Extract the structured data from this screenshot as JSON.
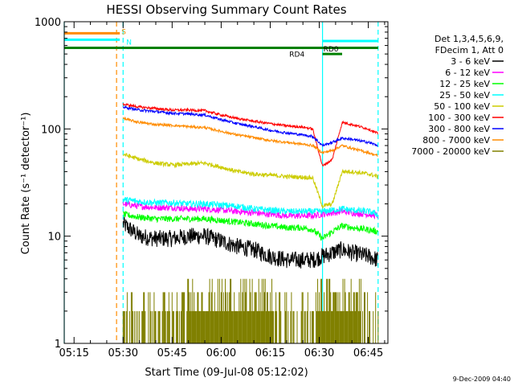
{
  "chart_data": {
    "type": "line",
    "title": "HESSI Observing Summary Count Rates",
    "xlabel": "Start Time (09-Jul-08 05:12:02)",
    "ylabel": "Count Rate (s⁻¹ detector⁻¹)",
    "y_scale": "log",
    "ylim": [
      1,
      1000
    ],
    "xlim": [
      "05:12",
      "06:51"
    ],
    "x_ticks": [
      "05:15",
      "05:30",
      "05:45",
      "06:00",
      "06:15",
      "06:30",
      "06:45"
    ],
    "y_ticks": [
      "1",
      "10",
      "100",
      "1000"
    ],
    "legend_header": [
      "Det 1,3,4,5,6,9,",
      "FDecim 1, Att 0"
    ],
    "series": [
      {
        "name": "3 - 6 keV",
        "color": "#000000",
        "x": [
          "05:30",
          "05:35",
          "05:40",
          "05:45",
          "05:50",
          "05:55",
          "06:00",
          "06:05",
          "06:10",
          "06:15",
          "06:20",
          "06:25",
          "06:28",
          "06:31",
          "06:34",
          "06:37",
          "06:40",
          "06:45",
          "06:48"
        ],
        "values": [
          13,
          10,
          9.5,
          9.5,
          10,
          10,
          9,
          8,
          7.5,
          6.5,
          6,
          6,
          6,
          6.5,
          7,
          7.5,
          7,
          6.5,
          6
        ]
      },
      {
        "name": "6 - 12 keV",
        "color": "#ff00ff",
        "x": [
          "05:30",
          "05:35",
          "05:40",
          "05:45",
          "05:50",
          "05:55",
          "06:00",
          "06:05",
          "06:10",
          "06:15",
          "06:20",
          "06:25",
          "06:28",
          "06:31",
          "06:34",
          "06:37",
          "06:40",
          "06:45",
          "06:48"
        ],
        "values": [
          20,
          19,
          18.5,
          18.5,
          18,
          18,
          17.5,
          17,
          16.5,
          16,
          15.5,
          15.5,
          15.5,
          16,
          16.5,
          17,
          16.5,
          16,
          15.5
        ]
      },
      {
        "name": "12 - 25 keV",
        "color": "#00ff00",
        "x": [
          "05:30",
          "05:35",
          "05:40",
          "05:45",
          "05:50",
          "05:55",
          "06:00",
          "06:05",
          "06:10",
          "06:15",
          "06:20",
          "06:25",
          "06:28",
          "06:31",
          "06:34",
          "06:37",
          "06:40",
          "06:45",
          "06:48"
        ],
        "values": [
          16,
          15,
          14.5,
          14.5,
          14.5,
          14.5,
          14,
          13.5,
          13,
          12.5,
          12,
          12,
          11.5,
          9.5,
          11,
          12.5,
          12,
          11.5,
          11
        ]
      },
      {
        "name": "25 - 50 keV",
        "color": "#00ffff",
        "x": [
          "05:30",
          "05:35",
          "05:40",
          "05:45",
          "05:50",
          "05:55",
          "06:00",
          "06:05",
          "06:10",
          "06:15",
          "06:20",
          "06:25",
          "06:28",
          "06:31",
          "06:34",
          "06:37",
          "06:40",
          "06:45",
          "06:48"
        ],
        "values": [
          22,
          21,
          20.5,
          20.5,
          20,
          20,
          19.5,
          19,
          18,
          17.5,
          17,
          17,
          17,
          17,
          17.5,
          18,
          17.5,
          17,
          16
        ]
      },
      {
        "name": "50 - 100 keV",
        "color": "#cccc00",
        "x": [
          "05:30",
          "05:35",
          "05:40",
          "05:45",
          "05:50",
          "05:55",
          "06:00",
          "06:05",
          "06:10",
          "06:15",
          "06:20",
          "06:25",
          "06:28",
          "06:31",
          "06:34",
          "06:37",
          "06:40",
          "06:45",
          "06:48"
        ],
        "values": [
          58,
          52,
          48,
          46,
          47,
          48,
          44,
          40,
          38,
          37,
          36,
          35.5,
          35,
          19,
          20,
          40,
          40,
          38,
          36
        ]
      },
      {
        "name": "100 - 300 keV",
        "color": "#ff0000",
        "x": [
          "05:30",
          "05:35",
          "05:40",
          "05:45",
          "05:50",
          "05:55",
          "06:00",
          "06:05",
          "06:10",
          "06:15",
          "06:20",
          "06:25",
          "06:28",
          "06:31",
          "06:34",
          "06:37",
          "06:40",
          "06:45",
          "06:48"
        ],
        "values": [
          170,
          160,
          155,
          150,
          150,
          148,
          135,
          125,
          118,
          112,
          107,
          104,
          100,
          45,
          52,
          115,
          110,
          100,
          90
        ]
      },
      {
        "name": "300 - 800 keV",
        "color": "#0000ff",
        "x": [
          "05:30",
          "05:35",
          "05:40",
          "05:45",
          "05:50",
          "05:55",
          "06:00",
          "06:05",
          "06:10",
          "06:15",
          "06:20",
          "06:25",
          "06:28",
          "06:31",
          "06:34",
          "06:37",
          "06:40",
          "06:45",
          "06:48"
        ],
        "values": [
          160,
          150,
          145,
          140,
          138,
          135,
          122,
          112,
          105,
          97,
          92,
          88,
          85,
          70,
          75,
          82,
          80,
          75,
          70
        ]
      },
      {
        "name": "800 - 7000 keV",
        "color": "#ff8c00",
        "x": [
          "05:30",
          "05:35",
          "05:40",
          "05:45",
          "05:50",
          "05:55",
          "06:00",
          "06:05",
          "06:10",
          "06:15",
          "06:20",
          "06:25",
          "06:28",
          "06:31",
          "06:34",
          "06:37",
          "06:40",
          "06:45",
          "06:48"
        ],
        "values": [
          125,
          115,
          110,
          108,
          105,
          103,
          95,
          88,
          83,
          78,
          75,
          72,
          70,
          60,
          63,
          70,
          66,
          60,
          56
        ]
      },
      {
        "name": "7000 - 20000 keV",
        "color": "#808000",
        "x": [
          "05:30",
          "05:35",
          "05:40",
          "05:45",
          "05:50",
          "05:55",
          "06:00",
          "06:05",
          "06:10",
          "06:15",
          "06:20",
          "06:25",
          "06:28",
          "06:31",
          "06:34",
          "06:37",
          "06:40",
          "06:45",
          "06:48"
        ],
        "values": [
          1.5,
          1.5,
          1.5,
          1.5,
          2.5,
          3,
          3,
          2.5,
          2.5,
          2.5,
          2,
          2,
          2,
          3,
          3.5,
          3.5,
          3,
          2,
          1.5
        ]
      }
    ],
    "flags": [
      {
        "label": "S",
        "color": "#ff8c00",
        "x_start": "05:12",
        "x_end": "05:29",
        "level": 780
      },
      {
        "label": "N",
        "color": "#00ffff",
        "x_start": "05:12",
        "x_end": "05:29",
        "level": 680
      },
      {
        "label": "RD4",
        "color": "#008000",
        "x_start": "05:12",
        "x_end": "06:48",
        "level": 570
      },
      {
        "label": "RD0",
        "color": "#008000",
        "x_start": "06:31",
        "x_end": "06:37",
        "level": 500
      },
      {
        "label": "",
        "color": "#00ffff",
        "x_start": "06:31",
        "x_end": "06:48",
        "level": 660
      }
    ],
    "vlines": [
      {
        "x": "05:12",
        "color": "#00ffff",
        "style": "solid"
      },
      {
        "x": "05:28",
        "color": "#ff8c00",
        "style": "dashed"
      },
      {
        "x": "05:30",
        "color": "#00ffff",
        "style": "dashed"
      },
      {
        "x": "06:31",
        "color": "#00ffff",
        "style": "solid"
      },
      {
        "x": "06:48",
        "color": "#00ffff",
        "style": "dashed"
      }
    ],
    "grid": false,
    "legend_placement": "right"
  },
  "footer": {
    "timestamp": "9-Dec-2009 04:40"
  }
}
